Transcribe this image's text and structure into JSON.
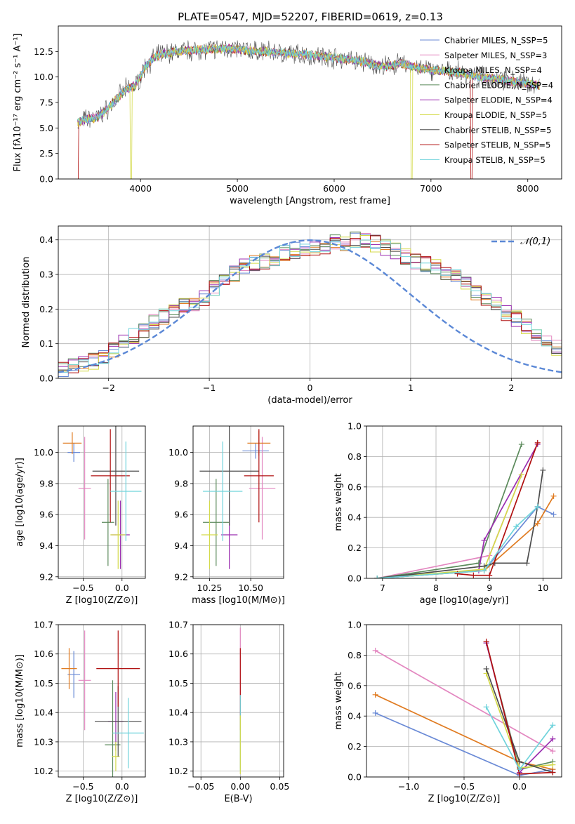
{
  "page": {
    "title": "PLATE=0547, MJD=52207, FIBERID=0619, z=0.13"
  },
  "chart_data": [
    {
      "id": "spectrum",
      "type": "line",
      "title": "PLATE=0547, MJD=52207, FIBERID=0619, z=0.13",
      "xlabel": "wavelength [Angstrom, rest frame]",
      "ylabel": "Flux [fλ10⁻¹⁷ erg cm⁻² s⁻¹ A⁻¹]",
      "xlim": [
        3150,
        8350
      ],
      "ylim": [
        0,
        15
      ],
      "xticks": [
        "4000",
        "5000",
        "6000",
        "7000",
        "8000"
      ],
      "yticks": [
        "0.0",
        "2.5",
        "5.0",
        "7.5",
        "10.0",
        "12.5"
      ],
      "legend_position": "top-right",
      "series_approx_knots": {
        "x": [
          3350,
          3450,
          3550,
          3650,
          3750,
          3850,
          3950,
          4050,
          4150,
          4300,
          4500,
          4700,
          4900,
          5100,
          5300,
          5500,
          5700,
          5900,
          6100,
          6300,
          6500,
          6700,
          6900,
          7100,
          7300,
          7500,
          7700,
          7900,
          8100
        ],
        "y": [
          5.5,
          5.9,
          6.0,
          6.8,
          7.8,
          8.8,
          9.2,
          11.0,
          12.0,
          12.4,
          12.6,
          12.7,
          12.8,
          12.6,
          12.5,
          12.3,
          12.2,
          12.0,
          11.8,
          11.5,
          11.0,
          11.3,
          10.8,
          10.6,
          10.4,
          10.0,
          9.8,
          9.5,
          9.2
        ]
      },
      "series": [
        {
          "name": "Chabrier MILES, N_SSP=5",
          "color": "#6a8ad6"
        },
        {
          "name": "Salpeter MILES, N_SSP=3",
          "color": "#e387c0"
        },
        {
          "name": "Kroupa MILES, N_SSP=4",
          "color": "#e07b21"
        },
        {
          "name": "Chabrier ELODIE, N_SSP=4",
          "color": "#5b8a5b"
        },
        {
          "name": "Salpeter ELODIE, N_SSP=4",
          "color": "#9b2fb0"
        },
        {
          "name": "Kroupa ELODIE, N_SSP=5",
          "color": "#d4da4a"
        },
        {
          "name": "Chabrier STELIB, N_SSP=5",
          "color": "#4d4d4d"
        },
        {
          "name": "Salpeter STELIB, N_SSP=5",
          "color": "#b01010"
        },
        {
          "name": "Kroupa STELIB, N_SSP=5",
          "color": "#6fd3db"
        }
      ]
    },
    {
      "id": "residuals",
      "type": "line",
      "xlabel": "(data-model)/error",
      "ylabel": "Normed distribution",
      "xlim": [
        -2.5,
        2.5
      ],
      "ylim": [
        0,
        0.44
      ],
      "xticks": [
        "−2",
        "−1",
        "0",
        "1",
        "2"
      ],
      "yticks": [
        "0.0",
        "0.1",
        "0.2",
        "0.3",
        "0.4"
      ],
      "grid": true,
      "legend_position": "top-right",
      "legend": "𝒩(0,1)",
      "normal_curve": {
        "mean": 0,
        "sigma": 1,
        "color": "#5b88d6"
      },
      "bin_width": 0.1,
      "bins_approx": [
        0.03,
        0.035,
        0.04,
        0.05,
        0.06,
        0.08,
        0.1,
        0.12,
        0.14,
        0.16,
        0.18,
        0.2,
        0.21,
        0.22,
        0.23,
        0.26,
        0.28,
        0.3,
        0.32,
        0.33,
        0.34,
        0.35,
        0.36,
        0.37,
        0.37,
        0.38,
        0.38,
        0.39,
        0.39,
        0.4,
        0.4,
        0.39,
        0.38,
        0.37,
        0.35,
        0.34,
        0.33,
        0.32,
        0.3,
        0.29,
        0.27,
        0.25,
        0.23,
        0.21,
        0.19,
        0.17,
        0.15,
        0.12,
        0.1,
        0.09
      ]
    },
    {
      "id": "age-vs-Z",
      "type": "scatter",
      "xlabel": "Z [log10(Z/Z⊙)]",
      "ylabel": "age [log10(age/yr)]",
      "xlim": [
        -0.82,
        0.3
      ],
      "ylim": [
        9.19,
        10.17
      ],
      "xticks": [
        "−0.5",
        "0.0"
      ],
      "yticks": [
        "9.2",
        "9.4",
        "9.6",
        "9.8",
        "10.0"
      ],
      "grid": true,
      "points": [
        {
          "x": -0.62,
          "y": 10.0,
          "xerr": 0.08,
          "yerr": 0.06,
          "color": "#6a8ad6"
        },
        {
          "x": -0.48,
          "y": 9.77,
          "xerr": 0.08,
          "yerr": 0.33,
          "color": "#e387c0"
        },
        {
          "x": -0.64,
          "y": 10.06,
          "xerr": 0.12,
          "yerr": 0.07,
          "color": "#e07b21"
        },
        {
          "x": -0.18,
          "y": 9.55,
          "xerr": 0.08,
          "yerr": 0.28,
          "color": "#5b8a5b"
        },
        {
          "x": -0.02,
          "y": 9.47,
          "xerr": 0.12,
          "yerr": 0.22,
          "color": "#9b2fb0"
        },
        {
          "x": -0.05,
          "y": 9.47,
          "xerr": 0.1,
          "yerr": 0.22,
          "color": "#d4da4a"
        },
        {
          "x": -0.08,
          "y": 9.88,
          "xerr": 0.3,
          "yerr": 0.35,
          "color": "#4d4d4d"
        },
        {
          "x": -0.15,
          "y": 9.85,
          "xerr": 0.25,
          "yerr": 0.3,
          "color": "#b01010"
        },
        {
          "x": 0.05,
          "y": 9.75,
          "xerr": 0.2,
          "yerr": 0.32,
          "color": "#6fd3db"
        }
      ]
    },
    {
      "id": "age-vs-mass",
      "type": "scatter",
      "xlabel": "mass [log10(M/M⊙)]",
      "xlim": [
        10.15,
        10.7
      ],
      "ylim": [
        9.19,
        10.17
      ],
      "xticks": [
        "10.25",
        "10.50"
      ],
      "yticks": [
        "9.2",
        "9.4",
        "9.6",
        "9.8",
        "10.0"
      ],
      "grid": true,
      "points": [
        {
          "x": 10.53,
          "y": 10.01,
          "xerr": 0.08,
          "yerr": 0.05,
          "color": "#6a8ad6"
        },
        {
          "x": 10.57,
          "y": 9.77,
          "xerr": 0.08,
          "yerr": 0.33,
          "color": "#e387c0"
        },
        {
          "x": 10.55,
          "y": 10.06,
          "xerr": 0.07,
          "yerr": 0.08,
          "color": "#e07b21"
        },
        {
          "x": 10.29,
          "y": 9.55,
          "xerr": 0.08,
          "yerr": 0.28,
          "color": "#5b8a5b"
        },
        {
          "x": 10.37,
          "y": 9.47,
          "xerr": 0.05,
          "yerr": 0.22,
          "color": "#9b2fb0"
        },
        {
          "x": 10.25,
          "y": 9.47,
          "xerr": 0.05,
          "yerr": 0.22,
          "color": "#d4da4a"
        },
        {
          "x": 10.37,
          "y": 9.88,
          "xerr": 0.18,
          "yerr": 0.35,
          "color": "#4d4d4d"
        },
        {
          "x": 10.55,
          "y": 9.85,
          "xerr": 0.09,
          "yerr": 0.3,
          "color": "#b01010"
        },
        {
          "x": 10.33,
          "y": 9.75,
          "xerr": 0.12,
          "yerr": 0.32,
          "color": "#6fd3db"
        }
      ]
    },
    {
      "id": "weight-vs-age",
      "type": "line",
      "xlabel": "age [log10(age/yr)]",
      "ylabel": "mass weight",
      "xlim": [
        6.7,
        10.35
      ],
      "ylim": [
        0,
        1
      ],
      "xticks": [
        "7",
        "8",
        "9",
        "10"
      ],
      "yticks": [
        "0.0",
        "0.2",
        "0.4",
        "0.6",
        "0.8",
        "1.0"
      ],
      "grid": true,
      "series": [
        {
          "color": "#6a8ad6",
          "x": [
            6.9,
            8.9,
            9.9,
            10.2
          ],
          "y": [
            0.0,
            0.05,
            0.47,
            0.42
          ]
        },
        {
          "color": "#e387c0",
          "x": [
            6.9,
            9.0,
            9.6
          ],
          "y": [
            0.0,
            0.15,
            0.68
          ]
        },
        {
          "color": "#e07b21",
          "x": [
            6.9,
            8.9,
            9.9,
            10.2
          ],
          "y": [
            0.0,
            0.05,
            0.36,
            0.54
          ]
        },
        {
          "color": "#5b8a5b",
          "x": [
            6.9,
            8.8,
            9.6
          ],
          "y": [
            0.0,
            0.1,
            0.88
          ]
        },
        {
          "color": "#9b2fb0",
          "x": [
            6.9,
            8.8,
            8.9,
            9.9
          ],
          "y": [
            0.0,
            0.05,
            0.25,
            0.88
          ]
        },
        {
          "color": "#d4da4a",
          "x": [
            6.9,
            8.9,
            9.6
          ],
          "y": [
            0.0,
            0.06,
            0.68
          ]
        },
        {
          "color": "#4d4d4d",
          "x": [
            6.9,
            8.9,
            9.1,
            9.7,
            9.9,
            10.0
          ],
          "y": [
            0.0,
            0.08,
            0.1,
            0.1,
            0.47,
            0.71
          ]
        },
        {
          "color": "#b01010",
          "x": [
            8.4,
            8.7,
            9.0,
            9.9
          ],
          "y": [
            0.03,
            0.02,
            0.02,
            0.89
          ]
        },
        {
          "color": "#6fd3db",
          "x": [
            6.9,
            8.9,
            9.5,
            9.9
          ],
          "y": [
            0.0,
            0.05,
            0.34,
            0.47
          ]
        }
      ]
    },
    {
      "id": "mass-vs-Z",
      "type": "scatter",
      "xlabel": "Z [log10(Z/Z⊙)]",
      "ylabel": "mass [log10(M/M⊙)]",
      "xlim": [
        -0.82,
        0.3
      ],
      "ylim": [
        10.18,
        10.7
      ],
      "xticks": [
        "−0.5",
        "0.0"
      ],
      "yticks": [
        "10.2",
        "10.3",
        "10.4",
        "10.5",
        "10.6",
        "10.7"
      ],
      "grid": true,
      "points": [
        {
          "x": -0.62,
          "y": 10.53,
          "xerr": 0.08,
          "yerr": 0.08,
          "color": "#6a8ad6"
        },
        {
          "x": -0.48,
          "y": 10.51,
          "xerr": 0.08,
          "yerr": 0.17,
          "color": "#e387c0"
        },
        {
          "x": -0.68,
          "y": 10.55,
          "xerr": 0.1,
          "yerr": 0.07,
          "color": "#e07b21"
        },
        {
          "x": -0.12,
          "y": 10.29,
          "xerr": 0.1,
          "yerr": 0.22,
          "color": "#5b8a5b"
        },
        {
          "x": -0.08,
          "y": 10.37,
          "xerr": 0.1,
          "yerr": 0.1,
          "color": "#9b2fb0"
        },
        {
          "x": -0.08,
          "y": 10.25,
          "xerr": 0.05,
          "yerr": 0.05,
          "color": "#d4da4a"
        },
        {
          "x": -0.05,
          "y": 10.37,
          "xerr": 0.3,
          "yerr": 0.12,
          "color": "#4d4d4d"
        },
        {
          "x": -0.05,
          "y": 10.55,
          "xerr": 0.28,
          "yerr": 0.13,
          "color": "#b01010"
        },
        {
          "x": 0.08,
          "y": 10.33,
          "xerr": 0.2,
          "yerr": 0.12,
          "color": "#6fd3db"
        }
      ]
    },
    {
      "id": "mass-vs-EBV",
      "type": "scatter",
      "xlabel": "E(B-V)",
      "xlim": [
        -0.06,
        0.055
      ],
      "ylim": [
        10.18,
        10.7
      ],
      "xticks": [
        "−0.05",
        "0.00",
        "0.05"
      ],
      "yticks": [
        "10.2",
        "10.3",
        "10.4",
        "10.5",
        "10.6",
        "10.7"
      ],
      "grid": true,
      "points": [
        {
          "x": 0,
          "y": 10.45,
          "yerr": 0.24,
          "color": "#e387c0"
        },
        {
          "x": 0,
          "y": 10.48,
          "yerr": 0.14,
          "color": "#b01010"
        },
        {
          "x": 0,
          "y": 10.33,
          "yerr": 0.13,
          "color": "#6fd3db"
        },
        {
          "x": 0,
          "y": 10.29,
          "yerr": 0.1,
          "color": "#d4da4a"
        }
      ]
    },
    {
      "id": "weight-vs-Z",
      "type": "line",
      "xlabel": "Z [log10(Z/Z⊙)]",
      "ylabel": "mass weight",
      "xlim": [
        -1.38,
        0.38
      ],
      "ylim": [
        0,
        1
      ],
      "xticks": [
        "−1.0",
        "−0.5",
        "0.0"
      ],
      "yticks": [
        "0.0",
        "0.2",
        "0.4",
        "0.6",
        "0.8",
        "1.0"
      ],
      "grid": true,
      "series": [
        {
          "color": "#6a8ad6",
          "x": [
            -1.3,
            0.0,
            0.3
          ],
          "y": [
            0.42,
            0.01,
            0.05
          ]
        },
        {
          "color": "#e387c0",
          "x": [
            -1.3,
            0.3
          ],
          "y": [
            0.83,
            0.17
          ]
        },
        {
          "color": "#e07b21",
          "x": [
            -1.3,
            0.0,
            0.3
          ],
          "y": [
            0.54,
            0.1,
            0.05
          ]
        },
        {
          "color": "#5b8a5b",
          "x": [
            -0.3,
            0.0,
            0.3
          ],
          "y": [
            0.88,
            0.05,
            0.1
          ]
        },
        {
          "color": "#9b2fb0",
          "x": [
            -0.3,
            0.0,
            0.3
          ],
          "y": [
            0.88,
            0.03,
            0.25
          ]
        },
        {
          "color": "#d4da4a",
          "x": [
            -0.3,
            0.0,
            0.3
          ],
          "y": [
            0.68,
            0.06,
            0.08
          ]
        },
        {
          "color": "#4d4d4d",
          "x": [
            -0.3,
            0.0,
            0.3
          ],
          "y": [
            0.71,
            0.1,
            0.03
          ]
        },
        {
          "color": "#b01010",
          "x": [
            -0.3,
            0.0,
            0.3
          ],
          "y": [
            0.89,
            0.02,
            0.03
          ]
        },
        {
          "color": "#6fd3db",
          "x": [
            -0.3,
            0.0,
            0.3
          ],
          "y": [
            0.46,
            0.05,
            0.34
          ]
        }
      ]
    }
  ]
}
